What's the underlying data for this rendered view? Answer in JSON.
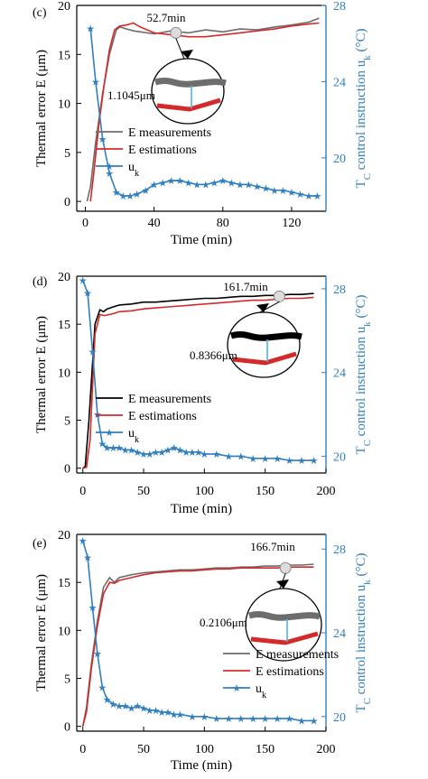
{
  "colors": {
    "measured_c": "#6d6d6d",
    "measured_d": "#000000",
    "measured_e": "#6d6d6d",
    "estimated": "#d42a2a",
    "control": "#2f7fc1",
    "right_axis": "#2f7fc1",
    "marker_ring": "#bdbdbd"
  },
  "chart_data": [
    {
      "type": "line",
      "panel_label": "(c)",
      "xlabel": "Time (min)",
      "ylabel_left": "Thermal error E (μm)",
      "ylabel_right": "T_C control instruction u_k (°C)",
      "xlim": [
        -5,
        140
      ],
      "ylim_left": [
        -1,
        20
      ],
      "ylim_right": [
        17.2,
        28
      ],
      "x_ticks": [
        0,
        40,
        80,
        120
      ],
      "y_ticks_left": [
        0,
        5,
        10,
        15,
        20
      ],
      "y_ticks_right": [
        20,
        24,
        28
      ],
      "legend": [
        "E measurements",
        "E estimations",
        "u_k"
      ],
      "annotation_time": "52.7min",
      "annotation_time_value": 52.7,
      "annotation_error": "1.1045μm",
      "series": [
        {
          "name": "E measurements",
          "axis": "left",
          "x": [
            1,
            3,
            6,
            10,
            14,
            18,
            20,
            24,
            28,
            32,
            40,
            50,
            60,
            70,
            80,
            90,
            100,
            110,
            120,
            130,
            136
          ],
          "y": [
            0,
            1.5,
            6,
            11,
            15,
            17.5,
            17.8,
            17.6,
            17.4,
            17.3,
            17.1,
            17.4,
            17.2,
            17.5,
            17.3,
            17.6,
            17.5,
            17.8,
            18.0,
            18.3,
            18.7
          ]
        },
        {
          "name": "E estimations",
          "axis": "left",
          "x": [
            3,
            5,
            8,
            11,
            14,
            17,
            20,
            24,
            28,
            32,
            40,
            50,
            60,
            70,
            80,
            90,
            100,
            110,
            120,
            130,
            136
          ],
          "y": [
            0,
            3,
            8,
            12,
            15.5,
            17.5,
            17.9,
            18.0,
            18.2,
            17.8,
            17.2,
            17.0,
            16.8,
            16.8,
            17.0,
            17.2,
            17.4,
            17.6,
            17.9,
            18.1,
            18.2
          ]
        },
        {
          "name": "u_k",
          "axis": "right",
          "x": [
            3,
            6,
            10,
            14,
            18,
            22,
            26,
            30,
            35,
            40,
            45,
            50,
            55,
            60,
            65,
            70,
            75,
            80,
            85,
            90,
            95,
            100,
            105,
            110,
            115,
            120,
            125,
            130,
            135
          ],
          "y": [
            26.8,
            24.0,
            21.0,
            19.2,
            18.2,
            18.0,
            18.0,
            18.1,
            18.3,
            18.6,
            18.7,
            18.8,
            18.8,
            18.7,
            18.6,
            18.6,
            18.7,
            18.8,
            18.7,
            18.6,
            18.6,
            18.5,
            18.4,
            18.3,
            18.3,
            18.2,
            18.1,
            18.0,
            18.0
          ]
        }
      ]
    },
    {
      "type": "line",
      "panel_label": "(d)",
      "xlabel": "Time (min)",
      "ylabel_left": "Thermal error E (μm)",
      "ylabel_right": "T_C control instruction u_k (°C)",
      "xlim": [
        -5,
        200
      ],
      "ylim_left": [
        -0.5,
        20
      ],
      "ylim_right": [
        19.2,
        28.6
      ],
      "x_ticks": [
        0,
        50,
        100,
        150,
        200
      ],
      "y_ticks_left": [
        0,
        5,
        10,
        15,
        20
      ],
      "y_ticks_right": [
        20,
        24,
        28
      ],
      "legend": [
        "E measurements",
        "E estimations",
        "u_k"
      ],
      "annotation_time": "161.7min",
      "annotation_time_value": 161.7,
      "annotation_error": "0.8366μm",
      "series": [
        {
          "name": "E measurements",
          "axis": "left",
          "x": [
            0,
            2,
            5,
            10,
            14,
            17,
            20,
            25,
            30,
            40,
            50,
            60,
            70,
            80,
            90,
            100,
            110,
            120,
            130,
            140,
            150,
            160,
            170,
            180,
            190
          ],
          "y": [
            0,
            0.2,
            5,
            15,
            16.5,
            16.3,
            16.6,
            16.8,
            17.0,
            17.1,
            17.3,
            17.3,
            17.4,
            17.5,
            17.6,
            17.7,
            17.7,
            17.8,
            17.9,
            17.9,
            18.0,
            18.0,
            18.1,
            18.1,
            18.2
          ]
        },
        {
          "name": "E estimations",
          "axis": "left",
          "x": [
            0,
            3,
            6,
            10,
            14,
            18,
            25,
            30,
            40,
            50,
            60,
            70,
            80,
            90,
            100,
            110,
            120,
            130,
            140,
            150,
            160,
            170,
            180,
            190
          ],
          "y": [
            0,
            0.1,
            3,
            14,
            16.0,
            15.9,
            16.1,
            16.3,
            16.4,
            16.6,
            16.7,
            16.8,
            16.9,
            17.0,
            17.1,
            17.2,
            17.3,
            17.4,
            17.5,
            17.5,
            17.6,
            17.7,
            17.7,
            17.8
          ]
        },
        {
          "name": "u_k",
          "axis": "right",
          "x": [
            0,
            4,
            8,
            12,
            16,
            20,
            25,
            30,
            35,
            40,
            45,
            50,
            55,
            60,
            65,
            70,
            75,
            80,
            85,
            90,
            95,
            100,
            110,
            120,
            130,
            140,
            150,
            160,
            170,
            180,
            190
          ],
          "y": [
            28.4,
            27.8,
            25.0,
            22.0,
            20.6,
            20.4,
            20.4,
            20.4,
            20.3,
            20.3,
            20.2,
            20.1,
            20.1,
            20.2,
            20.2,
            20.3,
            20.4,
            20.3,
            20.2,
            20.2,
            20.2,
            20.1,
            20.1,
            20.0,
            20.0,
            19.9,
            19.9,
            19.9,
            19.8,
            19.8,
            19.8
          ]
        }
      ]
    },
    {
      "type": "line",
      "panel_label": "(e)",
      "xlabel": "Time (min)",
      "ylabel_left": "Thermal error E (μm)",
      "ylabel_right": "T_C control instruction u_k (°C)",
      "xlim": [
        -5,
        200
      ],
      "ylim_left": [
        -0.5,
        20
      ],
      "ylim_right": [
        19.3,
        28.7
      ],
      "x_ticks": [
        0,
        50,
        100,
        150,
        200
      ],
      "y_ticks_left": [
        0,
        5,
        10,
        15,
        20
      ],
      "y_ticks_right": [
        20,
        24,
        28
      ],
      "legend": [
        "E measurements",
        "E estimations",
        "u_k"
      ],
      "annotation_time": "166.7min",
      "annotation_time_value": 166.7,
      "annotation_error": "0.2106μm",
      "series": [
        {
          "name": "E measurements",
          "axis": "left",
          "x": [
            0,
            3,
            7,
            12,
            17,
            22,
            26,
            30,
            40,
            50,
            60,
            70,
            80,
            90,
            100,
            110,
            120,
            130,
            140,
            150,
            160,
            170,
            180,
            190
          ],
          "y": [
            0,
            2,
            6.5,
            11,
            14.5,
            15.5,
            15.0,
            15.5,
            15.8,
            16.0,
            16.1,
            16.2,
            16.3,
            16.3,
            16.4,
            16.5,
            16.5,
            16.6,
            16.6,
            16.7,
            16.7,
            16.8,
            16.8,
            16.9
          ]
        },
        {
          "name": "E estimations",
          "axis": "left",
          "x": [
            0,
            3,
            7,
            12,
            17,
            22,
            26,
            30,
            40,
            50,
            60,
            70,
            80,
            90,
            100,
            110,
            120,
            130,
            140,
            150,
            160,
            170,
            180,
            190
          ],
          "y": [
            0,
            1.5,
            6,
            10.5,
            13.8,
            15.0,
            14.9,
            15.2,
            15.5,
            15.8,
            16.0,
            16.1,
            16.2,
            16.2,
            16.3,
            16.4,
            16.4,
            16.5,
            16.5,
            16.5,
            16.5,
            16.6,
            16.6,
            16.6
          ]
        },
        {
          "name": "u_k",
          "axis": "right",
          "x": [
            0,
            4,
            8,
            12,
            16,
            20,
            25,
            30,
            35,
            40,
            45,
            50,
            55,
            60,
            65,
            70,
            75,
            80,
            90,
            100,
            110,
            120,
            130,
            140,
            150,
            160,
            170,
            180,
            190
          ],
          "y": [
            28.4,
            27.6,
            25.2,
            23.0,
            21.4,
            20.8,
            20.6,
            20.5,
            20.5,
            20.4,
            20.5,
            20.4,
            20.3,
            20.3,
            20.2,
            20.2,
            20.1,
            20.1,
            20.0,
            20.0,
            19.9,
            19.9,
            19.9,
            19.9,
            19.9,
            19.9,
            19.9,
            19.8,
            19.8
          ]
        }
      ]
    }
  ]
}
